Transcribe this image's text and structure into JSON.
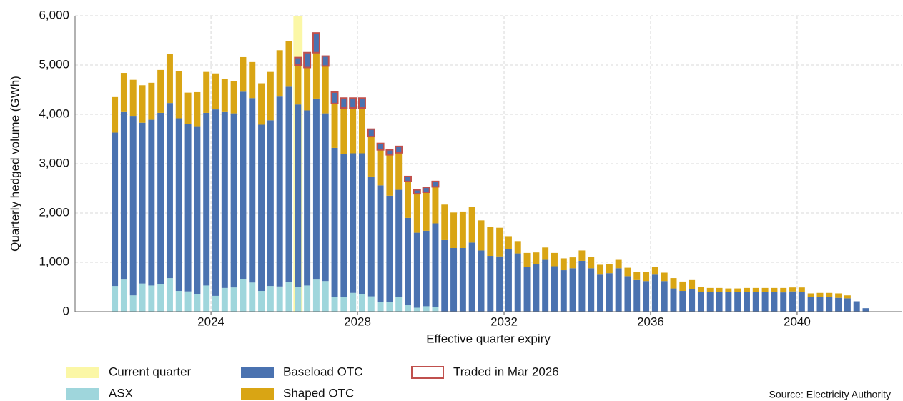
{
  "chart_data": {
    "type": "stacked_bar",
    "y_label": "Quarterly hedged volume (GWh)",
    "x_label": "Effective quarter expiry",
    "source": "Source: Electricity Authority",
    "xlim": [
      2020.29,
      2042.87
    ],
    "xticks": [
      2024,
      2028,
      2032,
      2036,
      2040
    ],
    "ylim": [
      0,
      6000
    ],
    "yticks": [
      0,
      {
        "value": 1000,
        "label": "1,000"
      },
      {
        "value": 2000,
        "label": "2,000"
      },
      {
        "value": 3000,
        "label": "3,000"
      },
      {
        "value": 4000,
        "label": "4,000"
      },
      {
        "value": 5000,
        "label": "5,000"
      },
      {
        "value": 6000,
        "label": "6,000"
      }
    ],
    "grid": true,
    "highlight": {
      "name": "Current quarter",
      "color": "#fbf7a6",
      "x": 2026.375
    },
    "x": [
      2021.375,
      2021.625,
      2021.875,
      2022.125,
      2022.375,
      2022.625,
      2022.875,
      2023.125,
      2023.375,
      2023.625,
      2023.875,
      2024.125,
      2024.375,
      2024.625,
      2024.875,
      2025.125,
      2025.375,
      2025.625,
      2025.875,
      2026.125,
      2026.375,
      2026.625,
      2026.875,
      2027.125,
      2027.375,
      2027.625,
      2027.875,
      2028.125,
      2028.375,
      2028.625,
      2028.875,
      2029.125,
      2029.375,
      2029.625,
      2029.875,
      2030.125,
      2030.375,
      2030.625,
      2030.875,
      2031.125,
      2031.375,
      2031.625,
      2031.875,
      2032.125,
      2032.375,
      2032.625,
      2032.875,
      2033.125,
      2033.375,
      2033.625,
      2033.875,
      2034.125,
      2034.375,
      2034.625,
      2034.875,
      2035.125,
      2035.375,
      2035.625,
      2035.875,
      2036.125,
      2036.375,
      2036.625,
      2036.875,
      2037.125,
      2037.375,
      2037.625,
      2037.875,
      2038.125,
      2038.375,
      2038.625,
      2038.875,
      2039.125,
      2039.375,
      2039.625,
      2039.875,
      2040.125,
      2040.375,
      2040.625,
      2040.875,
      2041.125,
      2041.375,
      2041.625,
      2041.875
    ],
    "series": [
      {
        "name": "ASX",
        "color": "#9fd6dc",
        "values": [
          520,
          650,
          330,
          570,
          530,
          560,
          680,
          420,
          410,
          350,
          530,
          320,
          480,
          490,
          660,
          590,
          420,
          520,
          510,
          600,
          500,
          530,
          650,
          620,
          300,
          300,
          380,
          350,
          310,
          200,
          200,
          290,
          130,
          80,
          110,
          100,
          null,
          null,
          null,
          null,
          null,
          null,
          null,
          null,
          null,
          null,
          null,
          null,
          null,
          null,
          null,
          null,
          null,
          null,
          null,
          null,
          null,
          null,
          null,
          null,
          null,
          null,
          null,
          null,
          null,
          null,
          null,
          null,
          null,
          null,
          null,
          null,
          null,
          null,
          null,
          null,
          null,
          null,
          null,
          null,
          null,
          null,
          null
        ]
      },
      {
        "name": "Baseload OTC",
        "color": "#4a72b0",
        "values": [
          3110,
          3410,
          3640,
          3260,
          3360,
          3470,
          3550,
          3500,
          3390,
          3410,
          3500,
          3780,
          3580,
          3530,
          3800,
          3740,
          3370,
          3360,
          3850,
          3960,
          3700,
          3550,
          3670,
          3400,
          3020,
          2890,
          2830,
          2860,
          2430,
          2360,
          2150,
          2180,
          1770,
          1520,
          1530,
          1690,
          1450,
          1290,
          1290,
          1400,
          1240,
          1130,
          1120,
          1270,
          1180,
          910,
          960,
          1050,
          920,
          840,
          880,
          1030,
          880,
          750,
          780,
          880,
          720,
          640,
          620,
          750,
          620,
          470,
          420,
          460,
          400,
          400,
          400,
          400,
          400,
          400,
          400,
          400,
          400,
          390,
          410,
          400,
          290,
          290,
          290,
          280,
          270,
          210,
          70
        ]
      },
      {
        "name": "Shaped OTC",
        "color": "#d9a514",
        "values": [
          720,
          780,
          730,
          760,
          750,
          870,
          1000,
          950,
          640,
          690,
          830,
          730,
          660,
          660,
          700,
          730,
          840,
          980,
          940,
          920,
          800,
          870,
          930,
          960,
          900,
          940,
          920,
          920,
          810,
          720,
          830,
          750,
          740,
          790,
          780,
          740,
          720,
          720,
          740,
          720,
          610,
          590,
          580,
          260,
          250,
          280,
          240,
          250,
          270,
          240,
          220,
          210,
          230,
          200,
          180,
          170,
          170,
          170,
          180,
          160,
          170,
          210,
          190,
          180,
          100,
          80,
          80,
          70,
          70,
          80,
          80,
          80,
          80,
          90,
          80,
          90,
          80,
          90,
          90,
          90,
          60,
          null,
          null
        ]
      },
      {
        "name": "Traded in Mar 2026",
        "color": "#4a72b0",
        "edgecolor": "#c0504d",
        "values": [
          null,
          null,
          null,
          null,
          null,
          null,
          null,
          null,
          null,
          null,
          null,
          null,
          null,
          null,
          null,
          null,
          null,
          null,
          null,
          null,
          150,
          300,
          400,
          200,
          230,
          200,
          200,
          200,
          150,
          130,
          100,
          130,
          100,
          80,
          100,
          110,
          null,
          null,
          null,
          null,
          null,
          null,
          null,
          null,
          null,
          null,
          null,
          null,
          null,
          null,
          null,
          null,
          null,
          null,
          null,
          null,
          null,
          null,
          null,
          null,
          null,
          null,
          null,
          null,
          null,
          null,
          null,
          null,
          null,
          null,
          null,
          null,
          null,
          null,
          null,
          null,
          null,
          null,
          null,
          null,
          null,
          null,
          null
        ]
      }
    ]
  }
}
